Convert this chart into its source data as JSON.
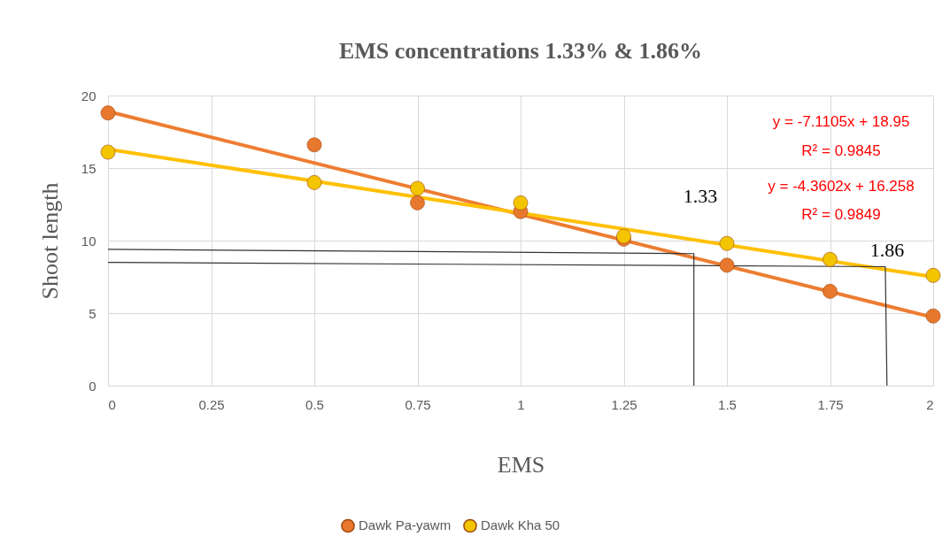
{
  "chart_data": {
    "type": "scatter",
    "title": "EMS concentrations 1.33% & 1.86%",
    "xlabel": "EMS",
    "ylabel": "Shoot length",
    "xlim": [
      0,
      2
    ],
    "xticks": [
      0,
      0.25,
      0.5,
      0.75,
      1,
      1.25,
      1.5,
      1.75,
      2
    ],
    "ylim": [
      0,
      20
    ],
    "yticks": [
      0,
      5,
      10,
      15,
      20
    ],
    "grid": true,
    "legend": "bottom",
    "marker": "circle",
    "series": [
      {
        "name": "Dawk Pa-yawm",
        "color": "#e8782e",
        "x": [
          0,
          0.5,
          0.75,
          1,
          1.25,
          1.5,
          1.75,
          2
        ],
        "values": [
          18.8,
          16.6,
          12.6,
          12.0,
          10.1,
          8.3,
          6.5,
          4.8
        ]
      },
      {
        "name": "Dawk Kha 50",
        "color": "#f2c500",
        "x": [
          0,
          0.5,
          0.75,
          1,
          1.25,
          1.5,
          1.75,
          2
        ],
        "values": [
          16.1,
          14.0,
          13.6,
          12.6,
          10.3,
          9.8,
          8.7,
          7.6
        ]
      },
      {
        "type": "line",
        "color": "#ed7d31",
        "line_style": "solid",
        "marker": "none",
        "x": [
          0,
          2
        ],
        "values": [
          18.9,
          4.7
        ]
      },
      {
        "type": "line",
        "color": "#ffc000",
        "line_style": "solid",
        "marker": "none",
        "x": [
          0,
          2
        ],
        "values": [
          16.3,
          7.5
        ]
      },
      {
        "type": "line",
        "color": "#333333",
        "line_style": "solid",
        "marker": "none",
        "x": [
          0,
          1.42,
          1.42
        ],
        "values": [
          9.4,
          9.1,
          0
        ]
      },
      {
        "type": "line",
        "color": "#333333",
        "line_style": "solid",
        "marker": "none",
        "x": [
          0,
          1.884,
          1.888
        ],
        "values": [
          8.5,
          8.2,
          0
        ]
      }
    ],
    "annotations": [
      "y = -7.1105x + 18.95",
      "R² = 0.9845",
      "y = -4.3602x + 16.258",
      "R² = 0.9849",
      "1.33",
      "1.86"
    ]
  }
}
